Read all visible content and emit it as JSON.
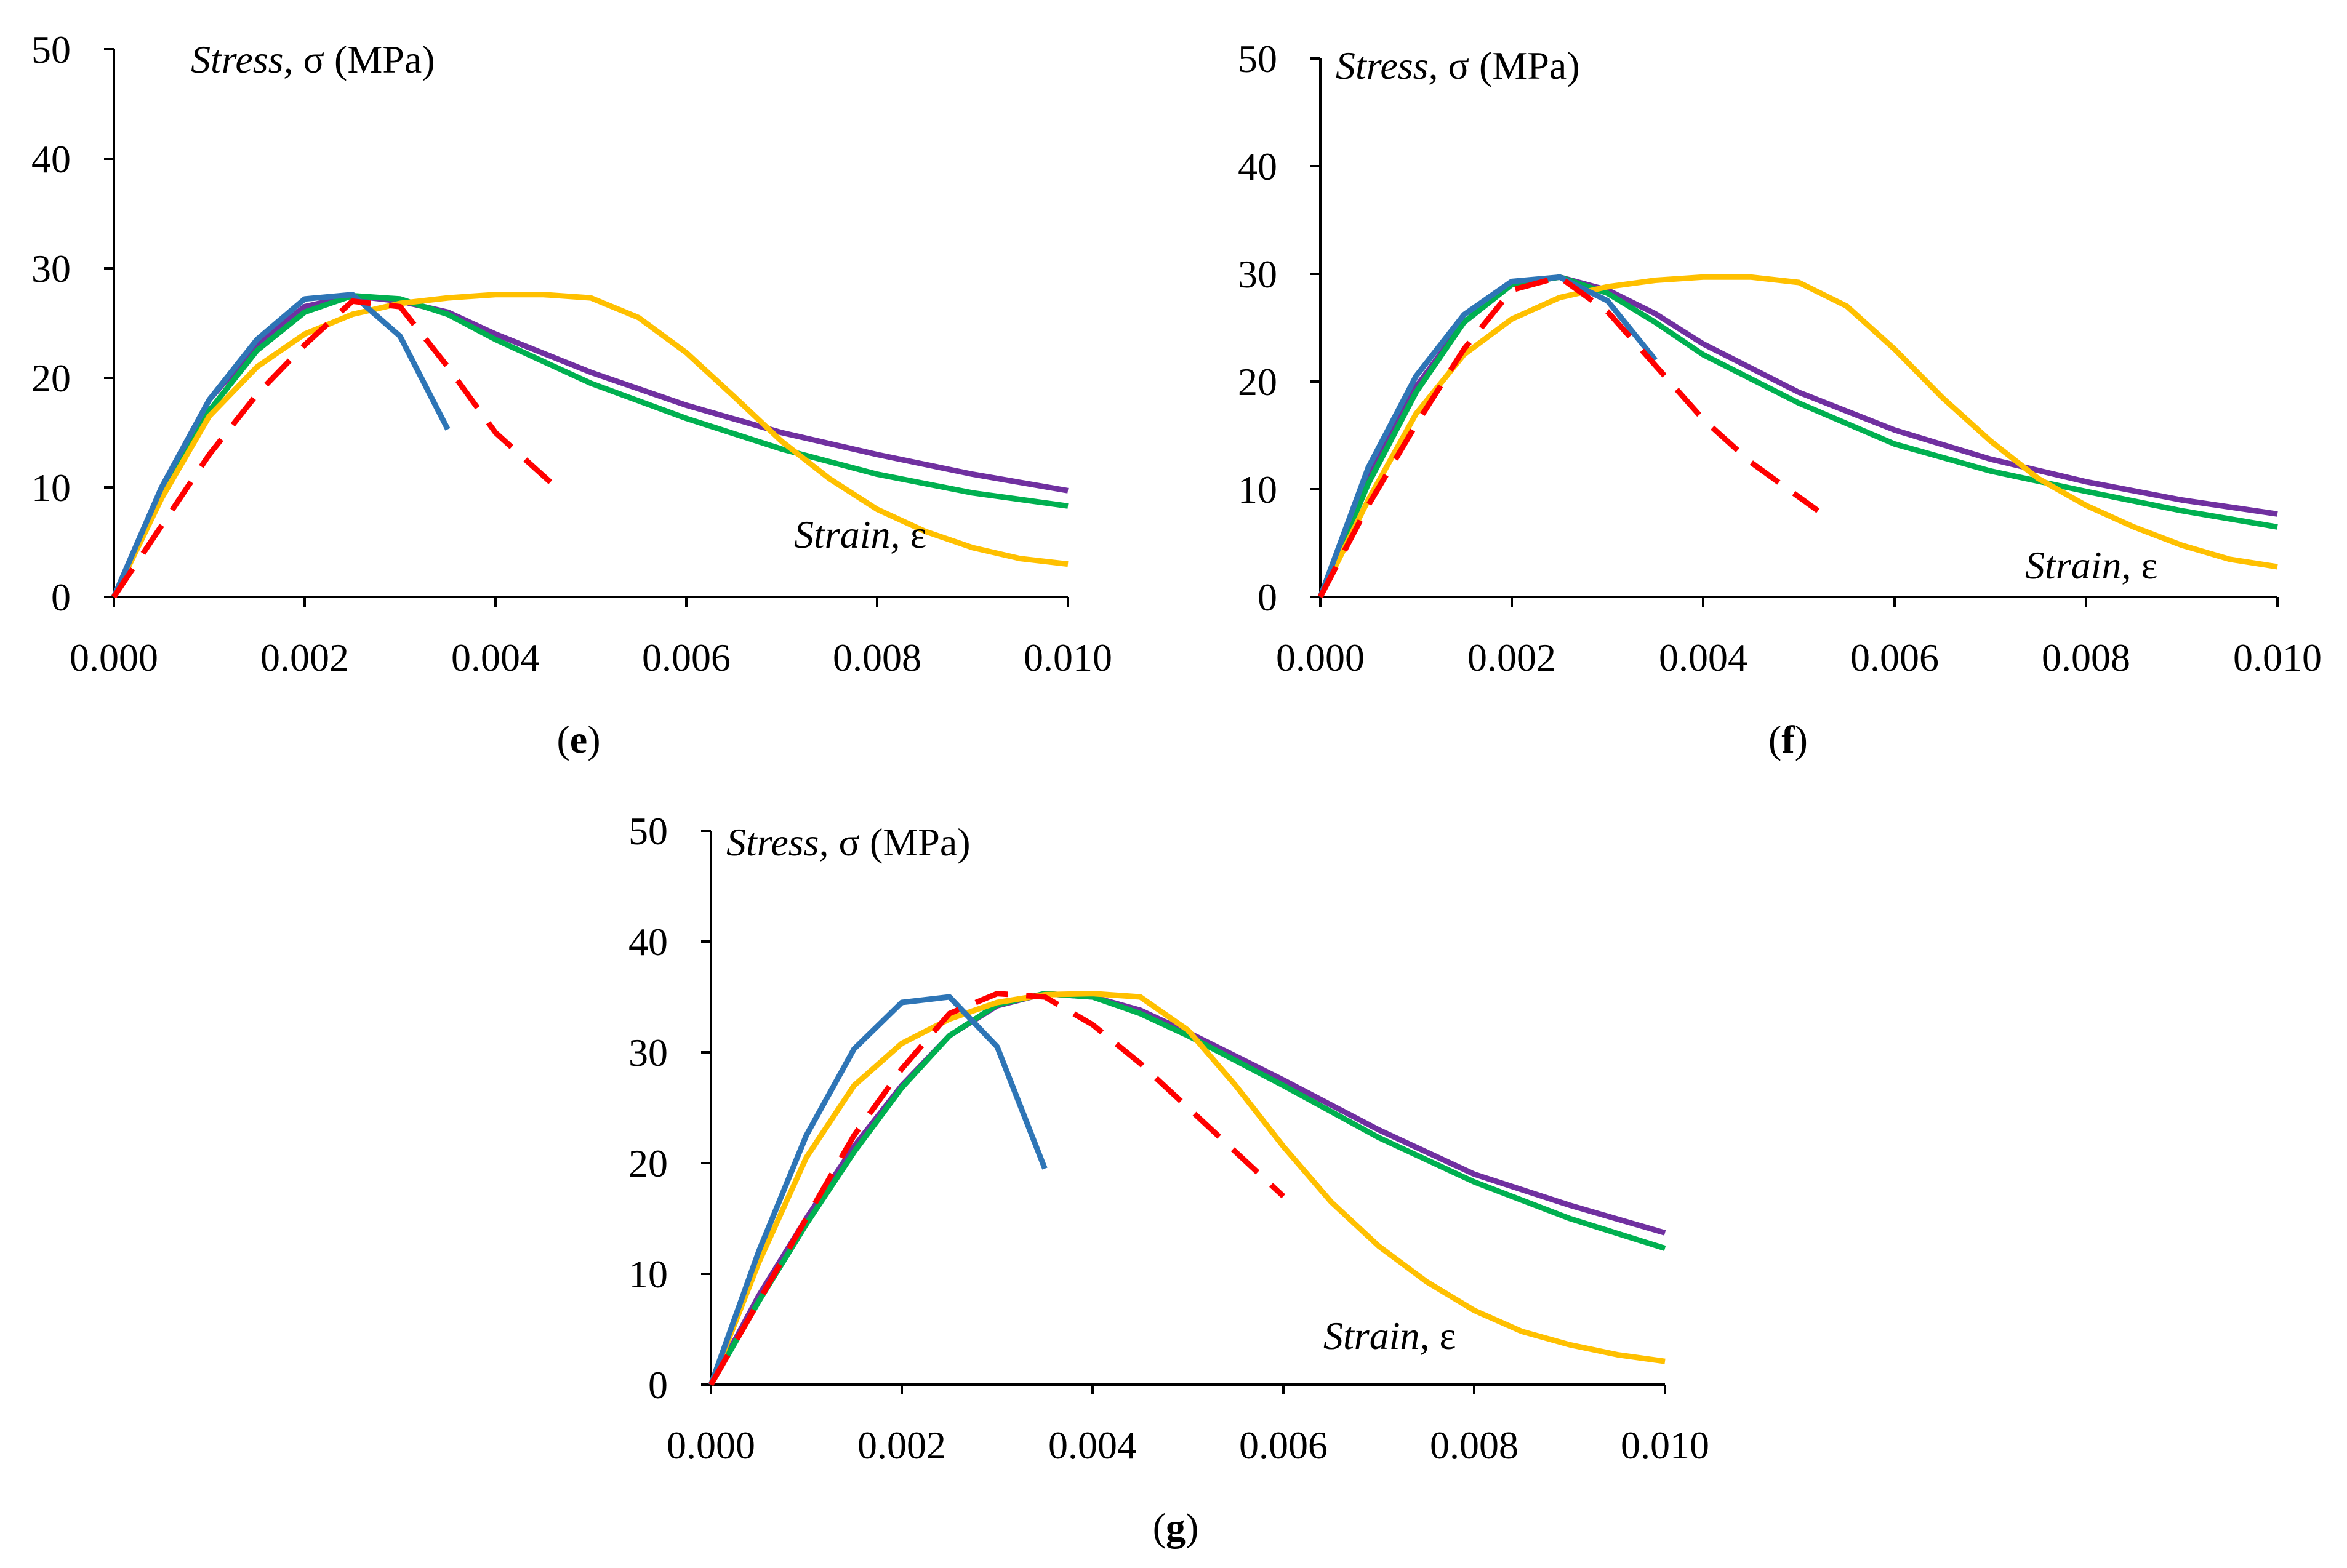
{
  "chart_data": [
    {
      "type": "line",
      "panel_label": "e",
      "ylabel_italic": "Stress,",
      "ylabel_rest": " σ (MPa)",
      "xlabel_italic": "Strain,",
      "xlabel_rest": " ε",
      "xlim": [
        0,
        0.01
      ],
      "ylim": [
        0,
        50
      ],
      "xticks": [
        "0.000",
        "0.002",
        "0.004",
        "0.006",
        "0.008",
        "0.010"
      ],
      "yticks": [
        "0",
        "10",
        "20",
        "30",
        "40",
        "50"
      ],
      "series": [
        {
          "name": "purple",
          "color": "#7030a0",
          "dashed": false,
          "x": [
            0,
            0.0005,
            0.001,
            0.0015,
            0.002,
            0.0025,
            0.003,
            0.0035,
            0.004,
            0.005,
            0.006,
            0.007,
            0.008,
            0.009,
            0.01
          ],
          "y": [
            0,
            10,
            18,
            23,
            26.5,
            27.5,
            27,
            26,
            24,
            20.5,
            17.5,
            15,
            13,
            11.2,
            9.7
          ]
        },
        {
          "name": "green",
          "color": "#00b050",
          "dashed": false,
          "x": [
            0,
            0.0005,
            0.001,
            0.0015,
            0.002,
            0.0025,
            0.003,
            0.0035,
            0.004,
            0.005,
            0.006,
            0.007,
            0.008,
            0.009,
            0.01
          ],
          "y": [
            0,
            9.5,
            17,
            22.5,
            26,
            27.5,
            27.2,
            25.8,
            23.5,
            19.5,
            16.3,
            13.5,
            11.2,
            9.5,
            8.3
          ]
        },
        {
          "name": "yellow",
          "color": "#ffc000",
          "dashed": false,
          "x": [
            0,
            0.0005,
            0.001,
            0.0015,
            0.002,
            0.0025,
            0.003,
            0.0035,
            0.004,
            0.0045,
            0.005,
            0.0055,
            0.006,
            0.0065,
            0.007,
            0.0075,
            0.008,
            0.0085,
            0.009,
            0.0095,
            0.01
          ],
          "y": [
            0,
            9,
            16.5,
            21,
            24,
            25.8,
            26.8,
            27.3,
            27.6,
            27.6,
            27.3,
            25.5,
            22.3,
            18.3,
            14.2,
            10.8,
            8,
            6,
            4.5,
            3.5,
            3
          ]
        },
        {
          "name": "blue",
          "color": "#2e75b6",
          "dashed": false,
          "x": [
            0,
            0.0005,
            0.001,
            0.0015,
            0.002,
            0.0025,
            0.003,
            0.0035
          ],
          "y": [
            0,
            10,
            18,
            23.5,
            27.2,
            27.6,
            23.8,
            15.3
          ]
        },
        {
          "name": "red-dashed",
          "color": "#ff0000",
          "dashed": true,
          "x": [
            0,
            0.0005,
            0.001,
            0.0015,
            0.002,
            0.0025,
            0.003,
            0.0035,
            0.004,
            0.0047
          ],
          "y": [
            0,
            6.5,
            13,
            18.5,
            23,
            27,
            26.5,
            21,
            15,
            9.5
          ]
        }
      ]
    },
    {
      "type": "line",
      "panel_label": "f",
      "ylabel_italic": "Stress,",
      "ylabel_rest": " σ (MPa)",
      "xlabel_italic": "Strain,",
      "xlabel_rest": " ε",
      "xlim": [
        0,
        0.01
      ],
      "ylim": [
        0,
        50
      ],
      "xticks": [
        "0.000",
        "0.002",
        "0.004",
        "0.006",
        "0.008",
        "0.010"
      ],
      "yticks": [
        "0",
        "10",
        "20",
        "30",
        "40",
        "50"
      ],
      "series": [
        {
          "name": "purple",
          "color": "#7030a0",
          "dashed": false,
          "x": [
            0,
            0.0005,
            0.001,
            0.0015,
            0.002,
            0.0025,
            0.003,
            0.0035,
            0.004,
            0.005,
            0.006,
            0.007,
            0.008,
            0.009,
            0.01
          ],
          "y": [
            0,
            11,
            19.5,
            25.5,
            29,
            29.7,
            28.5,
            26.3,
            23.5,
            19,
            15.5,
            12.8,
            10.7,
            9,
            7.7
          ]
        },
        {
          "name": "green",
          "color": "#00b050",
          "dashed": false,
          "x": [
            0,
            0.0005,
            0.001,
            0.0015,
            0.002,
            0.0025,
            0.003,
            0.0035,
            0.004,
            0.005,
            0.006,
            0.007,
            0.008,
            0.009,
            0.01
          ],
          "y": [
            0,
            10.5,
            19,
            25.5,
            29,
            29.7,
            28.2,
            25.5,
            22.5,
            18,
            14.2,
            11.7,
            9.8,
            8,
            6.5
          ]
        },
        {
          "name": "yellow",
          "color": "#ffc000",
          "dashed": false,
          "x": [
            0,
            0.0005,
            0.001,
            0.0015,
            0.002,
            0.0025,
            0.003,
            0.0035,
            0.004,
            0.0045,
            0.005,
            0.0055,
            0.006,
            0.0065,
            0.007,
            0.0075,
            0.008,
            0.0085,
            0.009,
            0.0095,
            0.01
          ],
          "y": [
            0,
            9,
            17,
            22.5,
            25.8,
            27.8,
            28.8,
            29.4,
            29.7,
            29.7,
            29.2,
            27,
            23,
            18.5,
            14.5,
            11,
            8.5,
            6.5,
            4.8,
            3.5,
            2.8
          ]
        },
        {
          "name": "blue",
          "color": "#2e75b6",
          "dashed": false,
          "x": [
            0,
            0.0005,
            0.001,
            0.0015,
            0.002,
            0.0025,
            0.003,
            0.0035
          ],
          "y": [
            0,
            12,
            20.5,
            26.2,
            29.3,
            29.7,
            27.5,
            22
          ]
        },
        {
          "name": "red-dashed",
          "color": "#ff0000",
          "dashed": true,
          "x": [
            0,
            0.0005,
            0.001,
            0.0015,
            0.002,
            0.0025,
            0.003,
            0.0035,
            0.004,
            0.0045,
            0.0052
          ],
          "y": [
            0,
            8.5,
            16,
            23,
            28.5,
            29.7,
            26.5,
            21.5,
            16.5,
            12.5,
            8
          ]
        }
      ]
    },
    {
      "type": "line",
      "panel_label": "g",
      "ylabel_italic": "Stress,",
      "ylabel_rest": " σ (MPa)",
      "xlabel_italic": "Strain,",
      "xlabel_rest": " ε",
      "xlim": [
        0,
        0.01
      ],
      "ylim": [
        0,
        50
      ],
      "xticks": [
        "0.000",
        "0.002",
        "0.004",
        "0.006",
        "0.008",
        "0.010"
      ],
      "yticks": [
        "0",
        "10",
        "20",
        "30",
        "40",
        "50"
      ],
      "series": [
        {
          "name": "purple",
          "color": "#7030a0",
          "dashed": false,
          "x": [
            0,
            0.0005,
            0.001,
            0.0015,
            0.002,
            0.0025,
            0.003,
            0.0035,
            0.004,
            0.0045,
            0.005,
            0.006,
            0.007,
            0.008,
            0.009,
            0.01
          ],
          "y": [
            0,
            8,
            15,
            21.5,
            27,
            31.5,
            34.2,
            35.3,
            35,
            33.8,
            31.8,
            27.5,
            23,
            19,
            16.2,
            13.7
          ]
        },
        {
          "name": "green",
          "color": "#00b050",
          "dashed": false,
          "x": [
            0,
            0.0005,
            0.001,
            0.0015,
            0.002,
            0.0025,
            0.003,
            0.0035,
            0.004,
            0.0045,
            0.005,
            0.006,
            0.007,
            0.008,
            0.009,
            0.01
          ],
          "y": [
            0,
            7.5,
            14.5,
            21,
            26.8,
            31.5,
            34.3,
            35.3,
            35,
            33.5,
            31.5,
            27,
            22.3,
            18.3,
            15,
            12.3
          ]
        },
        {
          "name": "yellow",
          "color": "#ffc000",
          "dashed": false,
          "x": [
            0,
            0.0005,
            0.001,
            0.0015,
            0.002,
            0.0025,
            0.003,
            0.0035,
            0.004,
            0.0045,
            0.005,
            0.0055,
            0.006,
            0.0065,
            0.007,
            0.0075,
            0.008,
            0.0085,
            0.009,
            0.0095,
            0.01
          ],
          "y": [
            0,
            11,
            20.5,
            27,
            30.8,
            33,
            34.5,
            35.2,
            35.3,
            35,
            32,
            27,
            21.5,
            16.5,
            12.5,
            9.3,
            6.7,
            4.8,
            3.6,
            2.7,
            2.1
          ]
        },
        {
          "name": "blue",
          "color": "#2e75b6",
          "dashed": false,
          "x": [
            0,
            0.0005,
            0.001,
            0.0015,
            0.002,
            0.0025,
            0.003,
            0.0035
          ],
          "y": [
            0,
            12,
            22.5,
            30.3,
            34.5,
            35,
            30.5,
            19.5
          ]
        },
        {
          "name": "red-dashed",
          "color": "#ff0000",
          "dashed": true,
          "x": [
            0,
            0.0005,
            0.001,
            0.0015,
            0.002,
            0.0025,
            0.003,
            0.0035,
            0.004,
            0.0045,
            0.005,
            0.0055,
            0.006
          ],
          "y": [
            0,
            7.5,
            15,
            22.5,
            28.5,
            33.5,
            35.3,
            35,
            32.5,
            29,
            25,
            21,
            17
          ]
        }
      ]
    }
  ]
}
